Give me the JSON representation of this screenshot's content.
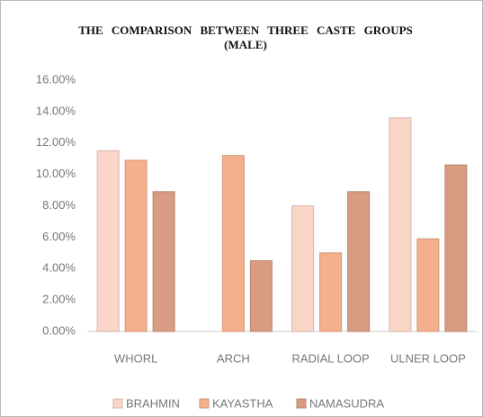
{
  "chart_data": {
    "type": "bar",
    "title": "THE COMPARISON BETWEEN THREE CASTE GROUPS (MALE)",
    "categories": [
      "WHORL",
      "ARCH",
      "RADIAL LOOP",
      "ULNER LOOP"
    ],
    "series": [
      {
        "name": "BRAHMIN",
        "color": "#f9d6c8",
        "values": [
          11.5,
          0,
          8.0,
          13.6
        ]
      },
      {
        "name": "KAYASTHA",
        "color": "#f4b08c",
        "values": [
          10.9,
          11.2,
          5.0,
          5.9
        ]
      },
      {
        "name": "NAMASUDRA",
        "color": "#d89c82",
        "values": [
          8.9,
          4.5,
          8.9,
          10.6
        ]
      }
    ],
    "ylim": [
      0,
      16
    ],
    "yticks": [
      {
        "value": 0,
        "label": "0.00%"
      },
      {
        "value": 2,
        "label": "2.00%"
      },
      {
        "value": 4,
        "label": "4.00%"
      },
      {
        "value": 6,
        "label": "6.00%"
      },
      {
        "value": 8,
        "label": "8.00%"
      },
      {
        "value": 10,
        "label": "10.00%"
      },
      {
        "value": 12,
        "label": "12.00%"
      },
      {
        "value": 14,
        "label": "14.00%"
      },
      {
        "value": 16,
        "label": "16.00%"
      }
    ],
    "legend": "bottom"
  }
}
